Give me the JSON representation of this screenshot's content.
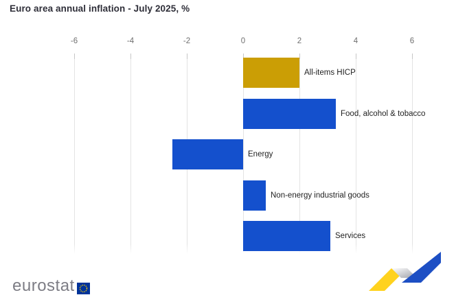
{
  "title": "Euro area annual inflation - July 2025, %",
  "chart_data": {
    "type": "bar",
    "orientation": "horizontal",
    "title": "Euro area annual inflation - July 2025, %",
    "unit": "%",
    "categories": [
      "All-items HICP",
      "Food, alcohol & tobacco",
      "Energy",
      "Non-energy industrial goods",
      "Services"
    ],
    "values": [
      2.0,
      3.3,
      -2.5,
      0.8,
      3.1
    ],
    "xticks": [
      -6,
      -4,
      -2,
      0,
      2,
      4,
      6
    ],
    "xlim": [
      -6,
      6
    ],
    "grid": "vertical",
    "legend": false,
    "highlight_category": "All-items HICP",
    "bar_colors": {
      "highlight": "#cb9e05",
      "default": "#1450cd"
    }
  },
  "branding": {
    "logo_text": "eurostat"
  },
  "palette": {
    "title-text": "#2e2e38",
    "tick-text": "#6f6f6f",
    "label-text": "#1f1f1f",
    "grid-line": "#e3e3e3",
    "bar-gold": "#cb9e05",
    "bar-blue": "#1450cd",
    "logo-text": "#7d7d85",
    "eu-flag-blue": "#003399",
    "eu-star-yellow": "#ffcc00",
    "zig-yellow": "#ffd21e",
    "zig-blue": "#1d4fc4"
  }
}
